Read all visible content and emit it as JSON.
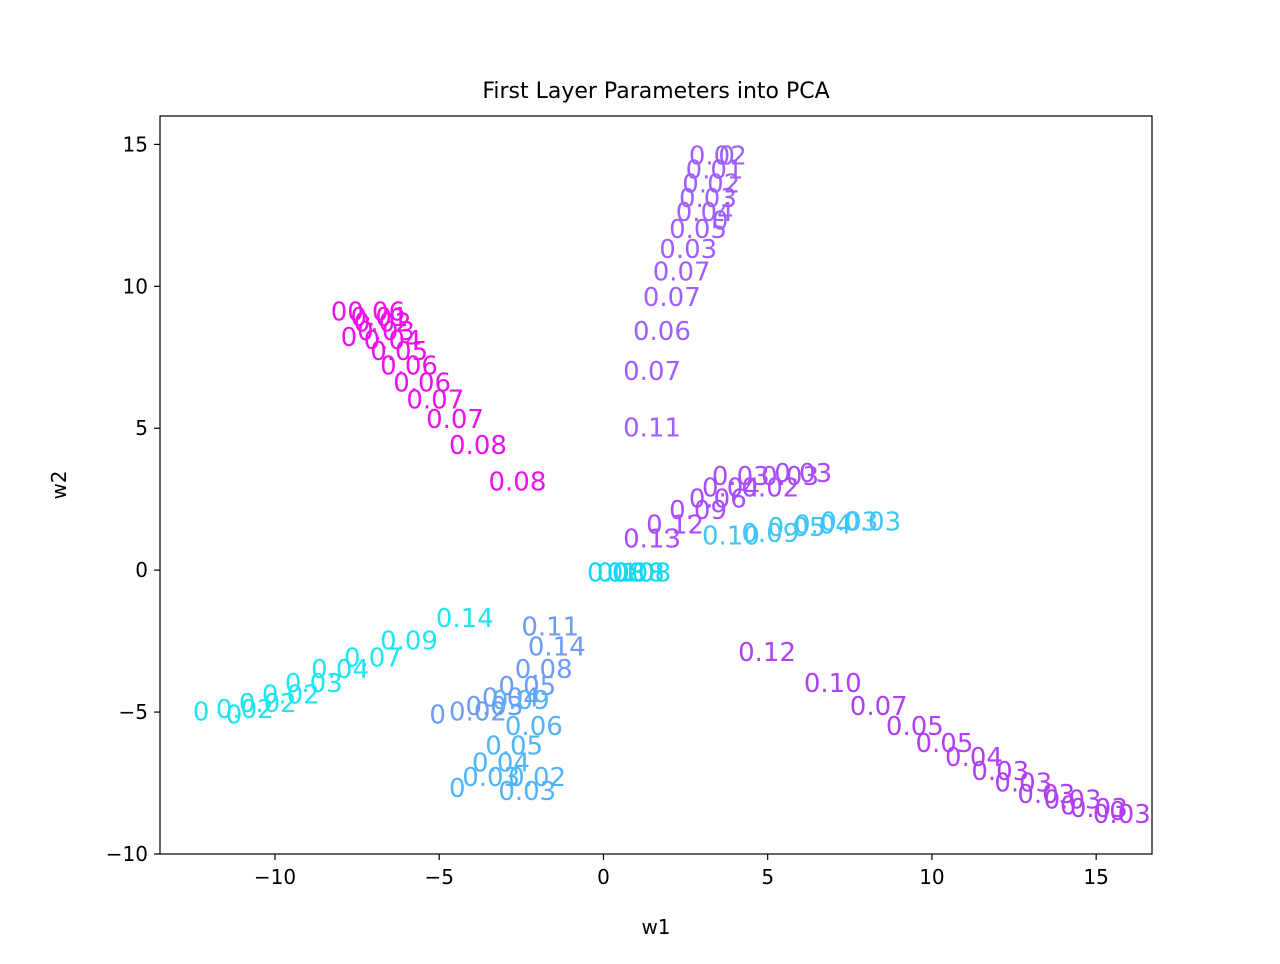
{
  "chart_data": {
    "type": "scatter",
    "title": "First Layer Parameters into PCA",
    "xlabel": "w1",
    "ylabel": "w2",
    "xlim": [
      -13.5,
      16.7
    ],
    "ylim": [
      -10,
      16
    ],
    "x_ticks": [
      -10,
      -5,
      0,
      5,
      10,
      15
    ],
    "x_tick_labels": [
      "−10",
      "−5",
      "0",
      "5",
      "10",
      "15"
    ],
    "y_ticks": [
      -10,
      -5,
      0,
      5,
      10,
      15
    ],
    "y_tick_labels": [
      "−10",
      "−5",
      "0",
      "5",
      "10",
      "15"
    ],
    "grid": false,
    "legend": "none",
    "marker": "text annotations (value labels placed at each point)",
    "series": [
      {
        "color": "#ee11ee",
        "points": [
          {
            "x": -3.5,
            "y": 2.8,
            "label": "0.08"
          },
          {
            "x": -4.7,
            "y": 4.1,
            "label": "0.08"
          },
          {
            "x": -5.4,
            "y": 5.0,
            "label": "0.07"
          },
          {
            "x": -6.0,
            "y": 5.7,
            "label": "0.07"
          },
          {
            "x": -6.4,
            "y": 6.3,
            "label": "0.06"
          },
          {
            "x": -6.8,
            "y": 6.9,
            "label": "0.06"
          },
          {
            "x": -7.1,
            "y": 7.4,
            "label": "0.05"
          },
          {
            "x": -7.3,
            "y": 7.8,
            "label": "0.04"
          },
          {
            "x": -7.5,
            "y": 8.1,
            "label": "0.03"
          },
          {
            "x": -7.6,
            "y": 8.4,
            "label": "0.02"
          },
          {
            "x": -7.7,
            "y": 8.6,
            "label": "0.01"
          },
          {
            "x": -7.8,
            "y": 8.8,
            "label": "0.06"
          },
          {
            "x": -8.0,
            "y": 7.9,
            "label": "0"
          },
          {
            "x": -8.3,
            "y": 8.8,
            "label": "0"
          }
        ]
      },
      {
        "color": "#9f60ff",
        "points": [
          {
            "x": 0.6,
            "y": 4.7,
            "label": "0.11"
          },
          {
            "x": 0.6,
            "y": 6.7,
            "label": "0.07"
          },
          {
            "x": 0.9,
            "y": 8.1,
            "label": "0.06"
          },
          {
            "x": 1.2,
            "y": 9.3,
            "label": "0.07"
          },
          {
            "x": 1.5,
            "y": 10.2,
            "label": "0.07"
          },
          {
            "x": 1.7,
            "y": 11.0,
            "label": "0.03"
          },
          {
            "x": 2.0,
            "y": 11.7,
            "label": "0.05"
          },
          {
            "x": 2.2,
            "y": 12.3,
            "label": "0.04"
          },
          {
            "x": 2.3,
            "y": 12.8,
            "label": "0.03"
          },
          {
            "x": 2.4,
            "y": 13.3,
            "label": "0.02"
          },
          {
            "x": 2.5,
            "y": 13.8,
            "label": "0.01"
          },
          {
            "x": 2.6,
            "y": 14.3,
            "label": "0.02"
          },
          {
            "x": 3.3,
            "y": 12.0,
            "label": "0"
          },
          {
            "x": 3.5,
            "y": 14.3,
            "label": "0"
          }
        ]
      },
      {
        "color": "#aa4cff",
        "points": [
          {
            "x": 0.6,
            "y": 0.8,
            "label": "0.13"
          },
          {
            "x": 1.3,
            "y": 1.3,
            "label": "0.12"
          },
          {
            "x": 2.0,
            "y": 1.8,
            "label": "0.09"
          },
          {
            "x": 2.6,
            "y": 2.2,
            "label": "0.06"
          },
          {
            "x": 3.0,
            "y": 2.6,
            "label": "0.04"
          },
          {
            "x": 3.3,
            "y": 3.0,
            "label": "0.03"
          },
          {
            "x": 4.2,
            "y": 2.6,
            "label": "0.02"
          },
          {
            "x": 4.8,
            "y": 3.0,
            "label": "0.03"
          },
          {
            "x": 5.2,
            "y": 3.1,
            "label": "0.03"
          }
        ]
      },
      {
        "color": "#3fc6f8",
        "points": [
          {
            "x": 3.0,
            "y": 0.9,
            "label": "0.10"
          },
          {
            "x": 4.2,
            "y": 1.0,
            "label": "0.09"
          },
          {
            "x": 5.0,
            "y": 1.2,
            "label": "0.05"
          },
          {
            "x": 5.8,
            "y": 1.3,
            "label": "0.04"
          },
          {
            "x": 6.6,
            "y": 1.4,
            "label": "0.03"
          },
          {
            "x": 7.3,
            "y": 1.4,
            "label": "0.03"
          }
        ]
      },
      {
        "color": "#14d8f4",
        "points": [
          {
            "x": -0.5,
            "y": -0.4,
            "label": "0.08"
          },
          {
            "x": -0.2,
            "y": -0.4,
            "label": "0.10"
          },
          {
            "x": 0.1,
            "y": -0.4,
            "label": "0.08"
          },
          {
            "x": 0.3,
            "y": -0.4,
            "label": "0.08"
          }
        ]
      },
      {
        "color": "#b040f5",
        "points": [
          {
            "x": 4.1,
            "y": -3.2,
            "label": "0.12"
          },
          {
            "x": 6.1,
            "y": -4.3,
            "label": "0.10"
          },
          {
            "x": 7.5,
            "y": -5.1,
            "label": "0.07"
          },
          {
            "x": 8.6,
            "y": -5.8,
            "label": "0.05"
          },
          {
            "x": 9.5,
            "y": -6.4,
            "label": "0.05"
          },
          {
            "x": 10.4,
            "y": -6.9,
            "label": "0.04"
          },
          {
            "x": 11.2,
            "y": -7.4,
            "label": "0.03"
          },
          {
            "x": 11.9,
            "y": -7.8,
            "label": "0.03"
          },
          {
            "x": 12.6,
            "y": -8.2,
            "label": "0.03"
          },
          {
            "x": 13.4,
            "y": -8.4,
            "label": "0.03"
          },
          {
            "x": 14.2,
            "y": -8.7,
            "label": "0.03"
          },
          {
            "x": 14.9,
            "y": -8.9,
            "label": "0.03"
          },
          {
            "x": 13.9,
            "y": -8.6,
            "label": "0"
          },
          {
            "x": 15.4,
            "y": -8.8,
            "label": "0"
          }
        ]
      },
      {
        "color": "#1ee6ef",
        "points": [
          {
            "x": -5.1,
            "y": -2.0,
            "label": "0.14"
          },
          {
            "x": -6.8,
            "y": -2.8,
            "label": "0.09"
          },
          {
            "x": -7.9,
            "y": -3.4,
            "label": "0.07"
          },
          {
            "x": -8.9,
            "y": -3.8,
            "label": "0.04"
          },
          {
            "x": -9.7,
            "y": -4.3,
            "label": "0.03"
          },
          {
            "x": -10.4,
            "y": -4.7,
            "label": "0.02"
          },
          {
            "x": -11.1,
            "y": -5.0,
            "label": "0.02"
          },
          {
            "x": -11.8,
            "y": -5.2,
            "label": "0.02"
          },
          {
            "x": -12.5,
            "y": -5.3,
            "label": "0"
          },
          {
            "x": -11.5,
            "y": -5.4,
            "label": "0"
          }
        ]
      },
      {
        "color": "#6d9cf2",
        "points": [
          {
            "x": -2.5,
            "y": -2.3,
            "label": "0.11"
          },
          {
            "x": -2.3,
            "y": -3.0,
            "label": "0.14"
          },
          {
            "x": -2.7,
            "y": -3.8,
            "label": "0.08"
          },
          {
            "x": -3.2,
            "y": -4.4,
            "label": "0.05"
          },
          {
            "x": -3.7,
            "y": -4.8,
            "label": "0.04"
          },
          {
            "x": -4.2,
            "y": -5.1,
            "label": "0.03"
          },
          {
            "x": -4.7,
            "y": -5.3,
            "label": "0.02"
          },
          {
            "x": -5.3,
            "y": -5.4,
            "label": "0"
          }
        ]
      },
      {
        "color": "#52b4f8",
        "points": [
          {
            "x": -3.4,
            "y": -4.9,
            "label": "0.09"
          },
          {
            "x": -3.0,
            "y": -5.8,
            "label": "0.06"
          },
          {
            "x": -3.6,
            "y": -6.5,
            "label": "0.05"
          },
          {
            "x": -4.0,
            "y": -7.1,
            "label": "0.04"
          },
          {
            "x": -4.3,
            "y": -7.6,
            "label": "0.03"
          },
          {
            "x": -4.7,
            "y": -8.0,
            "label": "0"
          },
          {
            "x": -3.2,
            "y": -8.1,
            "label": "0.03"
          },
          {
            "x": -2.9,
            "y": -7.6,
            "label": "0.02"
          }
        ]
      }
    ]
  }
}
